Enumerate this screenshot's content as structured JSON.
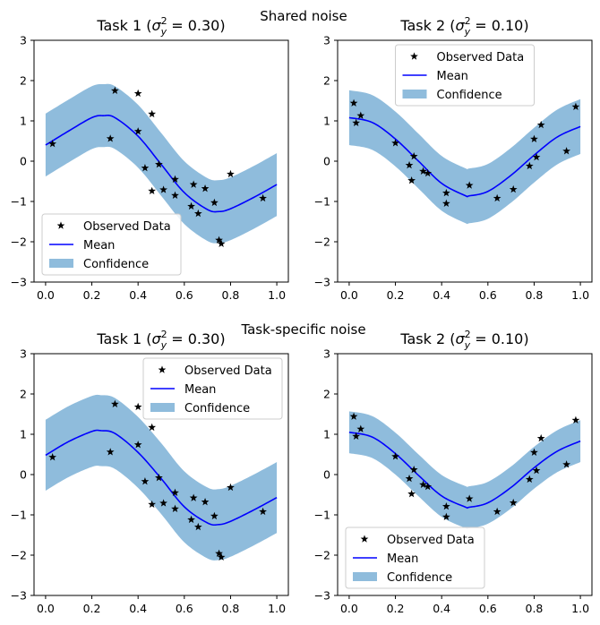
{
  "figure": {
    "suptitles": [
      "Shared noise",
      "Task-specific noise"
    ]
  },
  "chart_data": [
    {
      "type": "line",
      "title": "Task 1 (σ²ᵧ = 0.30)",
      "title_parts": {
        "prefix": "Task 1 (",
        "sigma": "σ",
        "sup": "2",
        "sub": "y",
        "suffix": " = 0.30)"
      },
      "xlim": [
        -0.05,
        1.05
      ],
      "ylim": [
        -3,
        3
      ],
      "xticks": [
        0.0,
        0.2,
        0.4,
        0.6,
        0.8,
        1.0
      ],
      "xtick_labels": [
        "0.0",
        "0.2",
        "0.4",
        "0.6",
        "0.8",
        "1.0"
      ],
      "yticks": [
        -3,
        -2,
        -1,
        0,
        1,
        2,
        3
      ],
      "ytick_labels": [
        "−3",
        "−2",
        "−1",
        "0",
        "1",
        "2",
        "3"
      ],
      "legend": {
        "placement": "lower-left",
        "entries": [
          "Observed Data",
          "Mean",
          "Confidence"
        ]
      },
      "observed": {
        "x": [
          0.03,
          0.28,
          0.3,
          0.4,
          0.4,
          0.43,
          0.46,
          0.46,
          0.49,
          0.51,
          0.56,
          0.56,
          0.63,
          0.64,
          0.66,
          0.69,
          0.73,
          0.75,
          0.76,
          0.8,
          0.94
        ],
        "y": [
          0.43,
          0.56,
          1.75,
          1.68,
          0.74,
          -0.17,
          1.17,
          -0.74,
          -0.08,
          -0.71,
          -0.45,
          -0.85,
          -1.12,
          -0.58,
          -1.3,
          -0.68,
          -1.03,
          -1.96,
          -2.05,
          -0.32,
          -0.92
        ]
      },
      "mean": {
        "x": [
          0.0,
          0.1,
          0.2,
          0.25,
          0.3,
          0.4,
          0.5,
          0.6,
          0.7,
          0.75,
          0.8,
          0.9,
          1.0
        ],
        "y": [
          0.4,
          0.75,
          1.08,
          1.13,
          1.08,
          0.62,
          -0.08,
          -0.78,
          -1.2,
          -1.25,
          -1.18,
          -0.9,
          -0.58
        ]
      },
      "band_halfwidth": 0.78
    },
    {
      "type": "line",
      "title": "Task 2 (σ²ᵧ = 0.10)",
      "title_parts": {
        "prefix": "Task 2 (",
        "sigma": "σ",
        "sup": "2",
        "sub": "y",
        "suffix": " = 0.10)"
      },
      "xlim": [
        -0.05,
        1.05
      ],
      "ylim": [
        -3,
        3
      ],
      "xticks": [
        0.0,
        0.2,
        0.4,
        0.6,
        0.8,
        1.0
      ],
      "xtick_labels": [
        "0.0",
        "0.2",
        "0.4",
        "0.6",
        "0.8",
        "1.0"
      ],
      "yticks": [
        -3,
        -2,
        -1,
        0,
        1,
        2,
        3
      ],
      "ytick_labels": [
        "−3",
        "−2",
        "−1",
        "0",
        "1",
        "2",
        "3"
      ],
      "legend": {
        "placement": "upper-center",
        "entries": [
          "Observed Data",
          "Mean",
          "Confidence"
        ]
      },
      "observed": {
        "x": [
          0.02,
          0.03,
          0.05,
          0.2,
          0.26,
          0.27,
          0.28,
          0.32,
          0.34,
          0.42,
          0.42,
          0.52,
          0.64,
          0.71,
          0.78,
          0.8,
          0.81,
          0.83,
          0.94,
          0.98
        ],
        "y": [
          1.44,
          0.95,
          1.13,
          0.45,
          -0.1,
          -0.48,
          0.12,
          -0.25,
          -0.3,
          -0.79,
          -1.05,
          -0.6,
          -0.92,
          -0.7,
          -0.12,
          0.55,
          0.1,
          0.9,
          0.25,
          1.35
        ]
      },
      "mean": {
        "x": [
          0.0,
          0.1,
          0.2,
          0.3,
          0.4,
          0.5,
          0.52,
          0.6,
          0.7,
          0.8,
          0.9,
          1.0
        ],
        "y": [
          1.08,
          0.96,
          0.55,
          0.0,
          -0.55,
          -0.85,
          -0.86,
          -0.75,
          -0.35,
          0.15,
          0.6,
          0.86
        ]
      },
      "band_halfwidth": 0.68
    },
    {
      "type": "line",
      "title": "Task 1 (σ²ᵧ = 0.30)",
      "title_parts": {
        "prefix": "Task 1 (",
        "sigma": "σ",
        "sup": "2",
        "sub": "y",
        "suffix": " = 0.30)"
      },
      "xlim": [
        -0.05,
        1.05
      ],
      "ylim": [
        -3,
        3
      ],
      "xticks": [
        0.0,
        0.2,
        0.4,
        0.6,
        0.8,
        1.0
      ],
      "xtick_labels": [
        "0.0",
        "0.2",
        "0.4",
        "0.6",
        "0.8",
        "1.0"
      ],
      "yticks": [
        -3,
        -2,
        -1,
        0,
        1,
        2,
        3
      ],
      "ytick_labels": [
        "−3",
        "−2",
        "−1",
        "0",
        "1",
        "2",
        "3"
      ],
      "legend": {
        "placement": "upper-right",
        "entries": [
          "Observed Data",
          "Mean",
          "Confidence"
        ]
      },
      "observed": {
        "x": [
          0.03,
          0.28,
          0.3,
          0.4,
          0.4,
          0.43,
          0.46,
          0.46,
          0.49,
          0.51,
          0.56,
          0.56,
          0.63,
          0.64,
          0.66,
          0.69,
          0.73,
          0.75,
          0.76,
          0.8,
          0.94
        ],
        "y": [
          0.43,
          0.56,
          1.75,
          1.68,
          0.74,
          -0.17,
          1.17,
          -0.74,
          -0.08,
          -0.71,
          -0.45,
          -0.85,
          -1.12,
          -0.58,
          -1.3,
          -0.68,
          -1.03,
          -1.96,
          -2.05,
          -0.32,
          -0.92
        ]
      },
      "mean": {
        "x": [
          0.0,
          0.1,
          0.2,
          0.24,
          0.3,
          0.4,
          0.5,
          0.6,
          0.7,
          0.75,
          0.8,
          0.9,
          1.0
        ],
        "y": [
          0.48,
          0.82,
          1.07,
          1.09,
          1.02,
          0.55,
          -0.1,
          -0.8,
          -1.2,
          -1.24,
          -1.16,
          -0.88,
          -0.57
        ]
      },
      "band_halfwidth": 0.88
    },
    {
      "type": "line",
      "title": "Task 2 (σ²ᵧ = 0.10)",
      "title_parts": {
        "prefix": "Task 2 (",
        "sigma": "σ",
        "sup": "2",
        "sub": "y",
        "suffix": " = 0.10)"
      },
      "xlim": [
        -0.05,
        1.05
      ],
      "ylim": [
        -3,
        3
      ],
      "xticks": [
        0.0,
        0.2,
        0.4,
        0.6,
        0.8,
        1.0
      ],
      "xtick_labels": [
        "0.0",
        "0.2",
        "0.4",
        "0.6",
        "0.8",
        "1.0"
      ],
      "yticks": [
        -3,
        -2,
        -1,
        0,
        1,
        2,
        3
      ],
      "ytick_labels": [
        "−3",
        "−2",
        "−1",
        "0",
        "1",
        "2",
        "3"
      ],
      "legend": {
        "placement": "lower-left",
        "entries": [
          "Observed Data",
          "Mean",
          "Confidence"
        ]
      },
      "observed": {
        "x": [
          0.02,
          0.03,
          0.05,
          0.2,
          0.26,
          0.27,
          0.28,
          0.32,
          0.34,
          0.42,
          0.42,
          0.52,
          0.64,
          0.71,
          0.78,
          0.8,
          0.81,
          0.83,
          0.94,
          0.98
        ],
        "y": [
          1.44,
          0.95,
          1.13,
          0.45,
          -0.1,
          -0.48,
          0.12,
          -0.25,
          -0.3,
          -0.79,
          -1.05,
          -0.6,
          -0.92,
          -0.7,
          -0.12,
          0.55,
          0.1,
          0.9,
          0.25,
          1.35
        ]
      },
      "mean": {
        "x": [
          0.0,
          0.1,
          0.2,
          0.3,
          0.4,
          0.5,
          0.52,
          0.6,
          0.7,
          0.8,
          0.9,
          1.0
        ],
        "y": [
          1.05,
          0.93,
          0.52,
          -0.02,
          -0.53,
          -0.8,
          -0.81,
          -0.7,
          -0.32,
          0.17,
          0.58,
          0.83
        ]
      },
      "band_halfwidth": 0.52
    }
  ],
  "colors": {
    "mean": "#0000ff",
    "band": "#8fbcdc",
    "points": "#000000",
    "axes": "#000000"
  }
}
